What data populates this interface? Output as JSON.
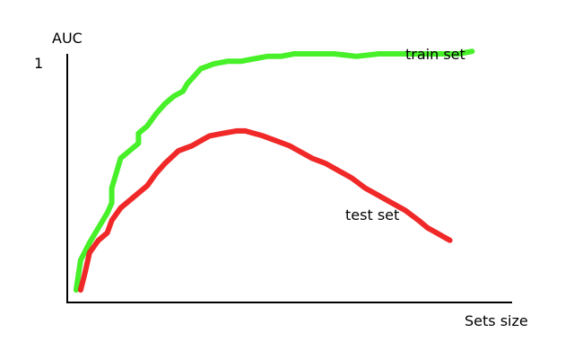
{
  "chart_data": {
    "type": "line",
    "title": "",
    "xlabel": "Sets size",
    "ylabel": "AUC",
    "y_tick_labels": [
      "1"
    ],
    "grid": false,
    "legend": "inline labels at line ends",
    "xlim": [
      0,
      100
    ],
    "ylim": [
      0,
      1
    ],
    "series": [
      {
        "name": "train set",
        "color": "#33ee11",
        "x": [
          2,
          3,
          5,
          7,
          9,
          10,
          10,
          11,
          12,
          14,
          16,
          16,
          18,
          20,
          22,
          24,
          26,
          27,
          30,
          33,
          36,
          39,
          42,
          45,
          48,
          51,
          55,
          60,
          65,
          70,
          75,
          80,
          84,
          88,
          91
        ],
        "y": [
          0.05,
          0.17,
          0.24,
          0.3,
          0.36,
          0.4,
          0.46,
          0.52,
          0.58,
          0.61,
          0.64,
          0.68,
          0.71,
          0.76,
          0.8,
          0.83,
          0.85,
          0.88,
          0.94,
          0.96,
          0.97,
          0.97,
          0.98,
          0.99,
          0.99,
          1.0,
          1.0,
          1.0,
          0.99,
          1.0,
          1.0,
          1.0,
          1.0,
          1.0,
          1.01
        ]
      },
      {
        "name": "test set",
        "color": "#ee1111",
        "x": [
          3,
          4,
          5,
          7,
          9,
          10,
          12,
          14,
          16,
          18,
          20,
          21,
          22,
          25,
          28,
          30,
          32,
          35,
          38,
          40,
          42,
          44,
          47,
          50,
          52,
          55,
          58,
          61,
          64,
          67,
          70,
          73,
          76,
          79,
          81,
          83,
          85,
          86
        ],
        "y": [
          0.05,
          0.12,
          0.2,
          0.25,
          0.28,
          0.33,
          0.38,
          0.41,
          0.44,
          0.47,
          0.52,
          0.54,
          0.56,
          0.61,
          0.63,
          0.65,
          0.67,
          0.68,
          0.69,
          0.69,
          0.68,
          0.67,
          0.65,
          0.63,
          0.61,
          0.58,
          0.56,
          0.53,
          0.5,
          0.46,
          0.43,
          0.4,
          0.37,
          0.33,
          0.3,
          0.28,
          0.26,
          0.25
        ]
      }
    ]
  }
}
